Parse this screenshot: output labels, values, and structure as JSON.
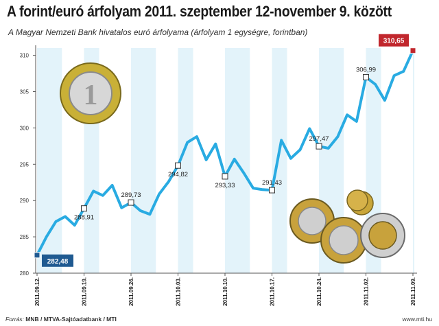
{
  "title": "A forint/euró árfolyam 2011. szeptember 12-november 9. között",
  "subtitle": "A Magyar Nemzeti Bank hivatalos euró árfolyama (árfolyam 1 egységre, forintban)",
  "footer": {
    "source_prefix": "Forrás: ",
    "source": "MNB / MTVA-Sajtóadatbank / MTI",
    "site": "www.mti.hu"
  },
  "colors": {
    "line": "#29abe2",
    "band": "#e3f3fa",
    "start_box": "#1f5a91",
    "end_box": "#c1272d"
  },
  "chart_data": {
    "type": "line",
    "title": "A forint/euró árfolyam 2011. szeptember 12-november 9. között",
    "subtitle": "A Magyar Nemzeti Bank hivatalos euró árfolyama (árfolyam 1 egységre, forintban)",
    "ylim": [
      280,
      311
    ],
    "yticks": [
      280,
      285,
      290,
      295,
      300,
      305,
      310
    ],
    "ytick_labels": [
      "280",
      "285",
      "290",
      "295",
      "300",
      "305",
      "310"
    ],
    "grid": false,
    "x": [
      "2011.09.12.",
      "2011.09.13.",
      "2011.09.14.",
      "2011.09.15.",
      "2011.09.16.",
      "2011.09.19.",
      "2011.09.20.",
      "2011.09.21.",
      "2011.09.22.",
      "2011.09.23.",
      "2011.09.26.",
      "2011.09.27.",
      "2011.09.28.",
      "2011.09.29.",
      "2011.09.30.",
      "2011.10.03.",
      "2011.10.04.",
      "2011.10.05.",
      "2011.10.06.",
      "2011.10.07.",
      "2011.10.10.",
      "2011.10.11.",
      "2011.10.12.",
      "2011.10.13.",
      "2011.10.14.",
      "2011.10.17.",
      "2011.10.18.",
      "2011.10.19.",
      "2011.10.20.",
      "2011.10.21.",
      "2011.10.24.",
      "2011.10.25.",
      "2011.10.26.",
      "2011.10.27.",
      "2011.10.28.",
      "2011.11.02.",
      "2011.11.03.",
      "2011.11.04.",
      "2011.11.07.",
      "2011.11.08.",
      "2011.11.09."
    ],
    "values": [
      282.48,
      285.0,
      287.1,
      287.8,
      286.6,
      288.91,
      291.3,
      290.7,
      292.1,
      289.0,
      289.73,
      288.6,
      288.1,
      290.9,
      292.6,
      294.82,
      298.0,
      298.8,
      295.6,
      297.8,
      293.33,
      295.7,
      293.8,
      291.7,
      291.5,
      291.43,
      298.3,
      295.8,
      297.0,
      299.9,
      297.47,
      297.2,
      298.8,
      301.8,
      300.9,
      306.99,
      306.0,
      303.8,
      307.2,
      307.8,
      310.65
    ],
    "xtick_labels": [
      "2011.09.12.",
      "2011.09.19.",
      "2011.09.26.",
      "2011.10.03.",
      "2011.10.10.",
      "2011.10.17.",
      "2011.10.24.",
      "2011.11.02.",
      "2011.11.09."
    ],
    "annotations": [
      {
        "x": "2011.09.12.",
        "value": 282.48,
        "label": "282,48"
      },
      {
        "x": "2011.09.19.",
        "value": 288.91,
        "label": "288,91"
      },
      {
        "x": "2011.09.26.",
        "value": 289.73,
        "label": "289,73"
      },
      {
        "x": "2011.10.03.",
        "value": 294.82,
        "label": "294,82"
      },
      {
        "x": "2011.10.10.",
        "value": 293.33,
        "label": "293,33"
      },
      {
        "x": "2011.10.17.",
        "value": 291.43,
        "label": "291,43"
      },
      {
        "x": "2011.10.24.",
        "value": 297.47,
        "label": "297,47"
      },
      {
        "x": "2011.11.02.",
        "value": 306.99,
        "label": "306,99"
      },
      {
        "x": "2011.11.09.",
        "value": 310.65,
        "label": "310,65"
      }
    ]
  }
}
